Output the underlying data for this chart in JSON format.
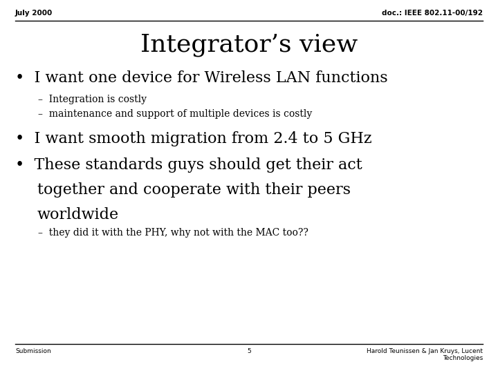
{
  "background_color": "#ffffff",
  "top_left_text": "July 2000",
  "top_right_text": "doc.: IEEE 802.11-00/192",
  "title": "Integrator’s view",
  "bullet1": "•  I want one device for Wireless LAN functions",
  "sub1a": "–  Integration is costly",
  "sub1b": "–  maintenance and support of multiple devices is costly",
  "bullet2": "•  I want smooth migration from 2.4 to 5 GHz",
  "bullet3a": "•  These standards guys should get their act",
  "bullet3b": "together and cooperate with their peers",
  "bullet3c": "worldwide",
  "sub3": "–  they did it with the PHY, why not with the MAC too??",
  "footer_left": "Submission",
  "footer_center": "5",
  "footer_right_line1": "Harold Teunissen & Jan Kruys, Lucent",
  "footer_right_line2": "Technologies",
  "text_color": "#000000"
}
